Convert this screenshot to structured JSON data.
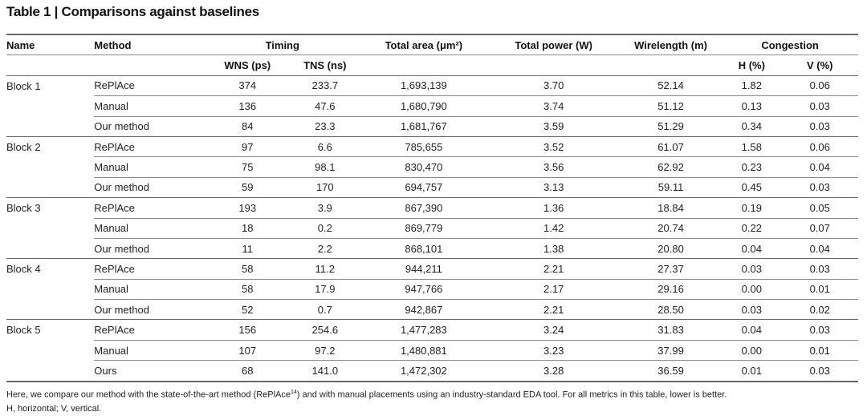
{
  "title": "Table 1 | Comparisons against baselines",
  "headers": {
    "name": "Name",
    "method": "Method",
    "timing": "Timing",
    "total_area": "Total area (μm²)",
    "total_power": "Total power (W)",
    "wirelength": "Wirelength (m)",
    "congestion": "Congestion",
    "wns": "WNS (ps)",
    "tns": "TNS (ns)",
    "h": "H (%)",
    "v": "V (%)"
  },
  "blocks": [
    {
      "name": "Block 1",
      "rows": [
        {
          "method": "RePlAce",
          "wns": "374",
          "tns": "233.7",
          "area": "1,693,139",
          "power": "3.70",
          "wirelength": "52.14",
          "h": "1.82",
          "v": "0.06"
        },
        {
          "method": "Manual",
          "wns": "136",
          "tns": "47.6",
          "area": "1,680,790",
          "power": "3.74",
          "wirelength": "51.12",
          "h": "0.13",
          "v": "0.03"
        },
        {
          "method": "Our method",
          "wns": "84",
          "tns": "23.3",
          "area": "1,681,767",
          "power": "3.59",
          "wirelength": "51.29",
          "h": "0.34",
          "v": "0.03"
        }
      ]
    },
    {
      "name": "Block 2",
      "rows": [
        {
          "method": "RePlAce",
          "wns": "97",
          "tns": "6.6",
          "area": "785,655",
          "power": "3.52",
          "wirelength": "61.07",
          "h": "1.58",
          "v": "0.06"
        },
        {
          "method": "Manual",
          "wns": "75",
          "tns": "98.1",
          "area": "830,470",
          "power": "3.56",
          "wirelength": "62.92",
          "h": "0.23",
          "v": "0.04"
        },
        {
          "method": "Our method",
          "wns": "59",
          "tns": "170",
          "area": "694,757",
          "power": "3.13",
          "wirelength": "59.11",
          "h": "0.45",
          "v": "0.03"
        }
      ]
    },
    {
      "name": "Block 3",
      "rows": [
        {
          "method": "RePlAce",
          "wns": "193",
          "tns": "3.9",
          "area": "867,390",
          "power": "1.36",
          "wirelength": "18.84",
          "h": "0.19",
          "v": "0.05"
        },
        {
          "method": "Manual",
          "wns": "18",
          "tns": "0.2",
          "area": "869,779",
          "power": "1.42",
          "wirelength": "20.74",
          "h": "0.22",
          "v": "0.07"
        },
        {
          "method": "Our method",
          "wns": "11",
          "tns": "2.2",
          "area": "868,101",
          "power": "1.38",
          "wirelength": "20.80",
          "h": "0.04",
          "v": "0.04"
        }
      ]
    },
    {
      "name": "Block 4",
      "rows": [
        {
          "method": "RePlAce",
          "wns": "58",
          "tns": "11.2",
          "area": "944,211",
          "power": "2.21",
          "wirelength": "27.37",
          "h": "0.03",
          "v": "0.03"
        },
        {
          "method": "Manual",
          "wns": "58",
          "tns": "17.9",
          "area": "947,766",
          "power": "2.17",
          "wirelength": "29.16",
          "h": "0.00",
          "v": "0.01"
        },
        {
          "method": "Our method",
          "wns": "52",
          "tns": "0.7",
          "area": "942,867",
          "power": "2.21",
          "wirelength": "28.50",
          "h": "0.03",
          "v": "0.02"
        }
      ]
    },
    {
      "name": "Block 5",
      "rows": [
        {
          "method": "RePlAce",
          "wns": "156",
          "tns": "254.6",
          "area": "1,477,283",
          "power": "3.24",
          "wirelength": "31.83",
          "h": "0.04",
          "v": "0.03"
        },
        {
          "method": "Manual",
          "wns": "107",
          "tns": "97.2",
          "area": "1,480,881",
          "power": "3.23",
          "wirelength": "37.99",
          "h": "0.00",
          "v": "0.01"
        },
        {
          "method": "Ours",
          "wns": "68",
          "tns": "141.0",
          "area": "1,472,302",
          "power": "3.28",
          "wirelength": "36.59",
          "h": "0.01",
          "v": "0.03"
        }
      ]
    }
  ],
  "caption": {
    "line1_a": "Here, we compare our method with the state-of-the-art method (RePlAce",
    "line1_ref": "14",
    "line1_b": ") and with manual placements using an industry-standard EDA tool. For all metrics in this table, lower is better.",
    "line2": "H, horizontal; V, vertical."
  }
}
